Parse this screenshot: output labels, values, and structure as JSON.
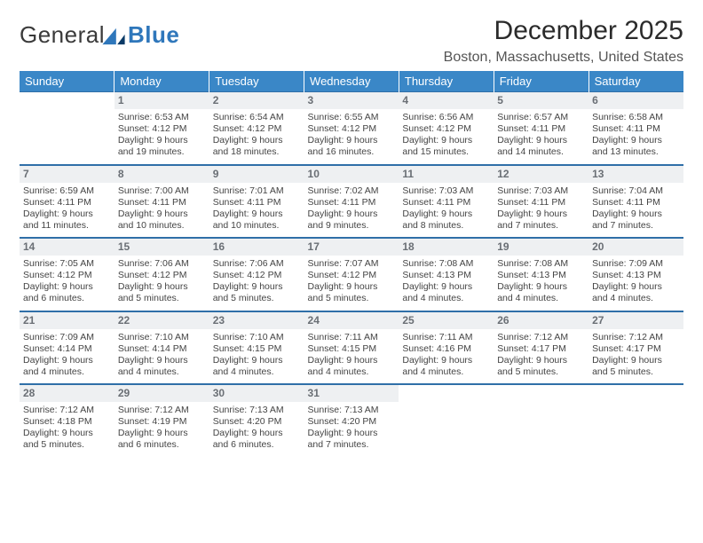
{
  "logo": {
    "word1": "General",
    "word2": "Blue"
  },
  "title": "December 2025",
  "subtitle": "Boston, Massachusetts, United States",
  "colors": {
    "header_bg": "#3a87c7",
    "header_text": "#ffffff",
    "rule": "#2f6fa8",
    "daynum_bg": "#eef0f2",
    "daynum_text": "#6a6f75",
    "logo_blue": "#2f77bb",
    "title_color": "#2b2b2b",
    "subtitle_color": "#555555",
    "body_text": "#444444"
  },
  "day_names": [
    "Sunday",
    "Monday",
    "Tuesday",
    "Wednesday",
    "Thursday",
    "Friday",
    "Saturday"
  ],
  "weeks": [
    [
      null,
      {
        "n": "1",
        "sunrise": "Sunrise: 6:53 AM",
        "sunset": "Sunset: 4:12 PM",
        "daylight": "Daylight: 9 hours and 19 minutes."
      },
      {
        "n": "2",
        "sunrise": "Sunrise: 6:54 AM",
        "sunset": "Sunset: 4:12 PM",
        "daylight": "Daylight: 9 hours and 18 minutes."
      },
      {
        "n": "3",
        "sunrise": "Sunrise: 6:55 AM",
        "sunset": "Sunset: 4:12 PM",
        "daylight": "Daylight: 9 hours and 16 minutes."
      },
      {
        "n": "4",
        "sunrise": "Sunrise: 6:56 AM",
        "sunset": "Sunset: 4:12 PM",
        "daylight": "Daylight: 9 hours and 15 minutes."
      },
      {
        "n": "5",
        "sunrise": "Sunrise: 6:57 AM",
        "sunset": "Sunset: 4:11 PM",
        "daylight": "Daylight: 9 hours and 14 minutes."
      },
      {
        "n": "6",
        "sunrise": "Sunrise: 6:58 AM",
        "sunset": "Sunset: 4:11 PM",
        "daylight": "Daylight: 9 hours and 13 minutes."
      }
    ],
    [
      {
        "n": "7",
        "sunrise": "Sunrise: 6:59 AM",
        "sunset": "Sunset: 4:11 PM",
        "daylight": "Daylight: 9 hours and 11 minutes."
      },
      {
        "n": "8",
        "sunrise": "Sunrise: 7:00 AM",
        "sunset": "Sunset: 4:11 PM",
        "daylight": "Daylight: 9 hours and 10 minutes."
      },
      {
        "n": "9",
        "sunrise": "Sunrise: 7:01 AM",
        "sunset": "Sunset: 4:11 PM",
        "daylight": "Daylight: 9 hours and 10 minutes."
      },
      {
        "n": "10",
        "sunrise": "Sunrise: 7:02 AM",
        "sunset": "Sunset: 4:11 PM",
        "daylight": "Daylight: 9 hours and 9 minutes."
      },
      {
        "n": "11",
        "sunrise": "Sunrise: 7:03 AM",
        "sunset": "Sunset: 4:11 PM",
        "daylight": "Daylight: 9 hours and 8 minutes."
      },
      {
        "n": "12",
        "sunrise": "Sunrise: 7:03 AM",
        "sunset": "Sunset: 4:11 PM",
        "daylight": "Daylight: 9 hours and 7 minutes."
      },
      {
        "n": "13",
        "sunrise": "Sunrise: 7:04 AM",
        "sunset": "Sunset: 4:11 PM",
        "daylight": "Daylight: 9 hours and 7 minutes."
      }
    ],
    [
      {
        "n": "14",
        "sunrise": "Sunrise: 7:05 AM",
        "sunset": "Sunset: 4:12 PM",
        "daylight": "Daylight: 9 hours and 6 minutes."
      },
      {
        "n": "15",
        "sunrise": "Sunrise: 7:06 AM",
        "sunset": "Sunset: 4:12 PM",
        "daylight": "Daylight: 9 hours and 5 minutes."
      },
      {
        "n": "16",
        "sunrise": "Sunrise: 7:06 AM",
        "sunset": "Sunset: 4:12 PM",
        "daylight": "Daylight: 9 hours and 5 minutes."
      },
      {
        "n": "17",
        "sunrise": "Sunrise: 7:07 AM",
        "sunset": "Sunset: 4:12 PM",
        "daylight": "Daylight: 9 hours and 5 minutes."
      },
      {
        "n": "18",
        "sunrise": "Sunrise: 7:08 AM",
        "sunset": "Sunset: 4:13 PM",
        "daylight": "Daylight: 9 hours and 4 minutes."
      },
      {
        "n": "19",
        "sunrise": "Sunrise: 7:08 AM",
        "sunset": "Sunset: 4:13 PM",
        "daylight": "Daylight: 9 hours and 4 minutes."
      },
      {
        "n": "20",
        "sunrise": "Sunrise: 7:09 AM",
        "sunset": "Sunset: 4:13 PM",
        "daylight": "Daylight: 9 hours and 4 minutes."
      }
    ],
    [
      {
        "n": "21",
        "sunrise": "Sunrise: 7:09 AM",
        "sunset": "Sunset: 4:14 PM",
        "daylight": "Daylight: 9 hours and 4 minutes."
      },
      {
        "n": "22",
        "sunrise": "Sunrise: 7:10 AM",
        "sunset": "Sunset: 4:14 PM",
        "daylight": "Daylight: 9 hours and 4 minutes."
      },
      {
        "n": "23",
        "sunrise": "Sunrise: 7:10 AM",
        "sunset": "Sunset: 4:15 PM",
        "daylight": "Daylight: 9 hours and 4 minutes."
      },
      {
        "n": "24",
        "sunrise": "Sunrise: 7:11 AM",
        "sunset": "Sunset: 4:15 PM",
        "daylight": "Daylight: 9 hours and 4 minutes."
      },
      {
        "n": "25",
        "sunrise": "Sunrise: 7:11 AM",
        "sunset": "Sunset: 4:16 PM",
        "daylight": "Daylight: 9 hours and 4 minutes."
      },
      {
        "n": "26",
        "sunrise": "Sunrise: 7:12 AM",
        "sunset": "Sunset: 4:17 PM",
        "daylight": "Daylight: 9 hours and 5 minutes."
      },
      {
        "n": "27",
        "sunrise": "Sunrise: 7:12 AM",
        "sunset": "Sunset: 4:17 PM",
        "daylight": "Daylight: 9 hours and 5 minutes."
      }
    ],
    [
      {
        "n": "28",
        "sunrise": "Sunrise: 7:12 AM",
        "sunset": "Sunset: 4:18 PM",
        "daylight": "Daylight: 9 hours and 5 minutes."
      },
      {
        "n": "29",
        "sunrise": "Sunrise: 7:12 AM",
        "sunset": "Sunset: 4:19 PM",
        "daylight": "Daylight: 9 hours and 6 minutes."
      },
      {
        "n": "30",
        "sunrise": "Sunrise: 7:13 AM",
        "sunset": "Sunset: 4:20 PM",
        "daylight": "Daylight: 9 hours and 6 minutes."
      },
      {
        "n": "31",
        "sunrise": "Sunrise: 7:13 AM",
        "sunset": "Sunset: 4:20 PM",
        "daylight": "Daylight: 9 hours and 7 minutes."
      },
      null,
      null,
      null
    ]
  ]
}
